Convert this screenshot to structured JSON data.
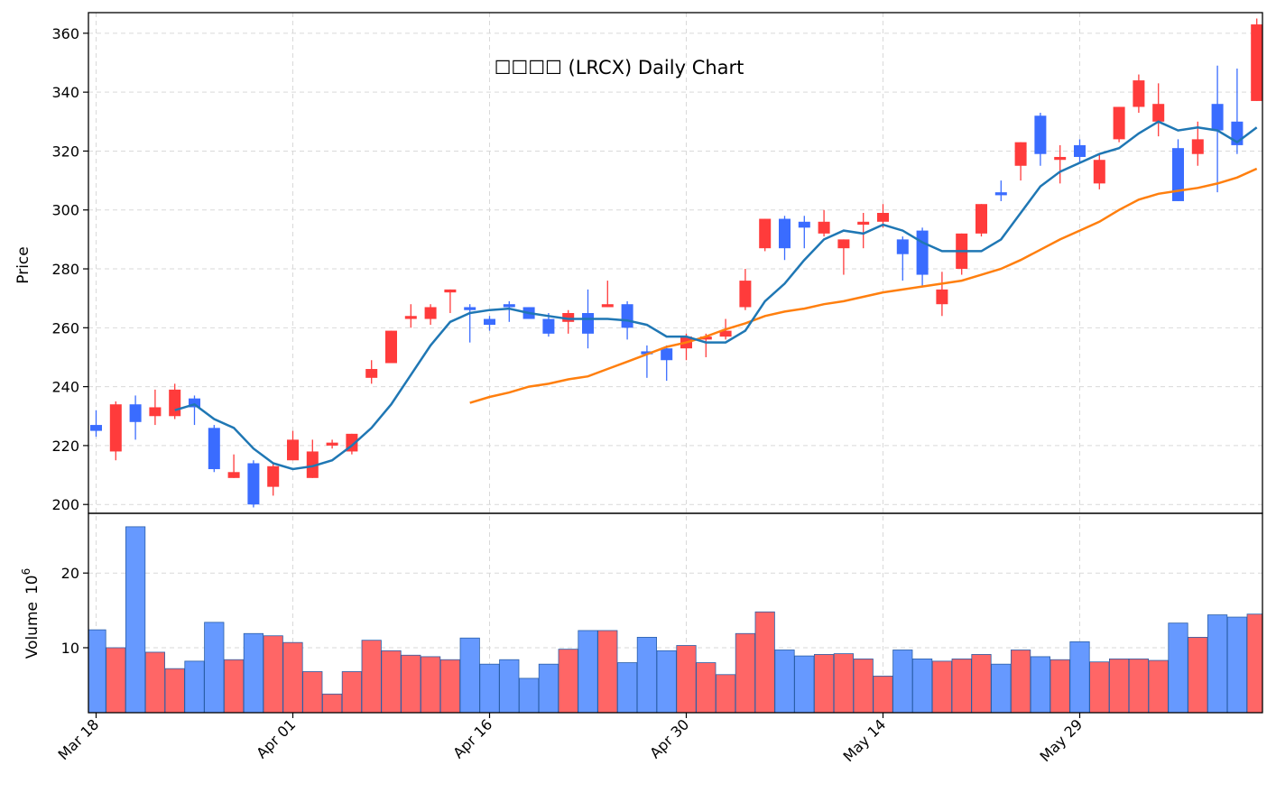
{
  "chart_data": {
    "type": "candlestick",
    "title": "泛林集团 (LRCX) Daily Chart",
    "title_display": "☐☐☐☐ (LRCX) Daily Chart",
    "ylabel_price": "Price",
    "ylabel_volume": "Volume",
    "volume_multiplier_label": "10",
    "volume_multiplier_exp": "6",
    "price_ticks": [
      "200",
      "220",
      "240",
      "260",
      "280",
      "300",
      "320",
      "340",
      "360"
    ],
    "volume_ticks": [
      "10",
      "20"
    ],
    "x_tick_labels": [
      "Mar 18",
      "Apr 01",
      "Apr 16",
      "Apr 30",
      "May 14",
      "May 29"
    ],
    "price_ylim": [
      197,
      367
    ],
    "volume_ylim": [
      1.3,
      28
    ],
    "grid": true,
    "colors": {
      "up": "#ff3b3b",
      "down": "#3a6cff",
      "up_volume": "#ff6666",
      "down_volume": "#6699ff",
      "ma_short": "#1f77b4",
      "ma_long": "#ff7f0e",
      "axis": "#000000",
      "grid": "#d9d9d9"
    },
    "candles": [
      {
        "o": 225,
        "h": 232,
        "l": 223,
        "c": 227,
        "dir": "down"
      },
      {
        "o": 218,
        "h": 235,
        "l": 215,
        "c": 234,
        "dir": "up"
      },
      {
        "o": 234,
        "h": 237,
        "l": 222,
        "c": 228,
        "dir": "down"
      },
      {
        "o": 230,
        "h": 239,
        "l": 227,
        "c": 233,
        "dir": "up"
      },
      {
        "o": 230,
        "h": 241,
        "l": 229,
        "c": 239,
        "dir": "up"
      },
      {
        "o": 236,
        "h": 237,
        "l": 227,
        "c": 233,
        "dir": "down"
      },
      {
        "o": 226,
        "h": 227,
        "l": 211,
        "c": 212,
        "dir": "down"
      },
      {
        "o": 209,
        "h": 217,
        "l": 209,
        "c": 211,
        "dir": "up"
      },
      {
        "o": 214,
        "h": 215,
        "l": 199,
        "c": 200,
        "dir": "down"
      },
      {
        "o": 206,
        "h": 214,
        "l": 203,
        "c": 213,
        "dir": "up"
      },
      {
        "o": 215,
        "h": 225,
        "l": 215,
        "c": 222,
        "dir": "up"
      },
      {
        "o": 209,
        "h": 222,
        "l": 209,
        "c": 218,
        "dir": "up"
      },
      {
        "o": 220,
        "h": 222,
        "l": 219,
        "c": 221,
        "dir": "up"
      },
      {
        "o": 218,
        "h": 224,
        "l": 217,
        "c": 224,
        "dir": "up"
      },
      {
        "o": 243,
        "h": 249,
        "l": 241,
        "c": 246,
        "dir": "up"
      },
      {
        "o": 248,
        "h": 259,
        "l": 248,
        "c": 259,
        "dir": "up"
      },
      {
        "o": 263,
        "h": 268,
        "l": 260,
        "c": 264,
        "dir": "up"
      },
      {
        "o": 263,
        "h": 268,
        "l": 261,
        "c": 267,
        "dir": "up"
      },
      {
        "o": 272,
        "h": 273,
        "l": 265,
        "c": 273,
        "dir": "up"
      },
      {
        "o": 267,
        "h": 268,
        "l": 255,
        "c": 266,
        "dir": "down"
      },
      {
        "o": 263,
        "h": 264,
        "l": 259,
        "c": 261,
        "dir": "down"
      },
      {
        "o": 268,
        "h": 269,
        "l": 262,
        "c": 267,
        "dir": "down"
      },
      {
        "o": 267,
        "h": 267,
        "l": 263,
        "c": 263,
        "dir": "down"
      },
      {
        "o": 263,
        "h": 265,
        "l": 257,
        "c": 258,
        "dir": "down"
      },
      {
        "o": 262,
        "h": 266,
        "l": 258,
        "c": 265,
        "dir": "up"
      },
      {
        "o": 265,
        "h": 273,
        "l": 253,
        "c": 258,
        "dir": "down"
      },
      {
        "o": 267,
        "h": 276,
        "l": 267,
        "c": 268,
        "dir": "up"
      },
      {
        "o": 268,
        "h": 269,
        "l": 256,
        "c": 260,
        "dir": "down"
      },
      {
        "o": 252,
        "h": 254,
        "l": 243,
        "c": 251,
        "dir": "down"
      },
      {
        "o": 253,
        "h": 254,
        "l": 242,
        "c": 249,
        "dir": "down"
      },
      {
        "o": 253,
        "h": 258,
        "l": 249,
        "c": 257,
        "dir": "up"
      },
      {
        "o": 256,
        "h": 258,
        "l": 250,
        "c": 257,
        "dir": "up"
      },
      {
        "o": 257,
        "h": 263,
        "l": 256,
        "c": 259,
        "dir": "up"
      },
      {
        "o": 267,
        "h": 280,
        "l": 266,
        "c": 276,
        "dir": "up"
      },
      {
        "o": 287,
        "h": 297,
        "l": 286,
        "c": 297,
        "dir": "up"
      },
      {
        "o": 297,
        "h": 298,
        "l": 283,
        "c": 287,
        "dir": "down"
      },
      {
        "o": 296,
        "h": 298,
        "l": 287,
        "c": 294,
        "dir": "down"
      },
      {
        "o": 292,
        "h": 300,
        "l": 291,
        "c": 296,
        "dir": "up"
      },
      {
        "o": 287,
        "h": 290,
        "l": 278,
        "c": 290,
        "dir": "up"
      },
      {
        "o": 295,
        "h": 299,
        "l": 287,
        "c": 296,
        "dir": "up"
      },
      {
        "o": 296,
        "h": 302,
        "l": 294,
        "c": 299,
        "dir": "up"
      },
      {
        "o": 290,
        "h": 291,
        "l": 276,
        "c": 285,
        "dir": "down"
      },
      {
        "o": 293,
        "h": 294,
        "l": 274,
        "c": 278,
        "dir": "down"
      },
      {
        "o": 268,
        "h": 279,
        "l": 264,
        "c": 273,
        "dir": "up"
      },
      {
        "o": 280,
        "h": 292,
        "l": 278,
        "c": 292,
        "dir": "up"
      },
      {
        "o": 292,
        "h": 302,
        "l": 291,
        "c": 302,
        "dir": "up"
      },
      {
        "o": 306,
        "h": 310,
        "l": 303,
        "c": 305,
        "dir": "down"
      },
      {
        "o": 315,
        "h": 323,
        "l": 310,
        "c": 323,
        "dir": "up"
      },
      {
        "o": 332,
        "h": 333,
        "l": 315,
        "c": 319,
        "dir": "down"
      },
      {
        "o": 317,
        "h": 322,
        "l": 309,
        "c": 318,
        "dir": "up"
      },
      {
        "o": 322,
        "h": 324,
        "l": 316,
        "c": 318,
        "dir": "down"
      },
      {
        "o": 309,
        "h": 319,
        "l": 307,
        "c": 317,
        "dir": "up"
      },
      {
        "o": 324,
        "h": 335,
        "l": 323,
        "c": 335,
        "dir": "up"
      },
      {
        "o": 335,
        "h": 346,
        "l": 333,
        "c": 344,
        "dir": "up"
      },
      {
        "o": 330,
        "h": 343,
        "l": 325,
        "c": 336,
        "dir": "up"
      },
      {
        "o": 321,
        "h": 324,
        "l": 303,
        "c": 303,
        "dir": "down"
      },
      {
        "o": 319,
        "h": 330,
        "l": 315,
        "c": 324,
        "dir": "up"
      },
      {
        "o": 336,
        "h": 349,
        "l": 306,
        "c": 327,
        "dir": "down"
      },
      {
        "o": 330,
        "h": 348,
        "l": 319,
        "c": 322,
        "dir": "down"
      },
      {
        "o": 337,
        "h": 365,
        "l": 337,
        "c": 363,
        "dir": "up"
      }
    ],
    "volume": [
      12.4,
      10.0,
      26.2,
      9.4,
      7.2,
      8.2,
      13.4,
      8.4,
      11.9,
      11.6,
      10.7,
      6.8,
      3.8,
      6.8,
      11.0,
      9.6,
      9.0,
      8.8,
      8.4,
      11.3,
      7.8,
      8.4,
      5.9,
      7.8,
      9.8,
      12.3,
      12.3,
      8.0,
      11.4,
      9.6,
      10.3,
      8.0,
      6.4,
      11.9,
      14.8,
      9.7,
      8.9,
      9.1,
      9.2,
      8.5,
      6.2,
      9.7,
      8.5,
      8.2,
      8.5,
      9.1,
      7.8,
      9.7,
      8.8,
      8.4,
      10.8,
      8.1,
      8.5,
      8.5,
      8.3,
      13.3,
      11.4,
      14.4,
      14.1,
      14.5
    ],
    "ma_short": [
      null,
      null,
      null,
      null,
      232,
      234,
      229,
      226,
      219,
      214,
      212,
      213,
      215,
      220,
      226,
      234,
      244,
      254,
      262,
      265,
      266,
      266.5,
      265,
      264,
      263,
      263,
      263,
      262.5,
      261,
      257,
      257,
      255,
      255,
      259,
      269,
      275,
      283,
      290,
      293,
      292,
      295,
      293,
      289,
      286,
      286,
      286,
      290,
      299,
      308,
      313,
      316,
      319,
      321,
      326,
      330,
      327,
      328,
      327,
      323,
      328
    ],
    "ma_long": [
      null,
      null,
      null,
      null,
      null,
      null,
      null,
      null,
      null,
      null,
      null,
      null,
      null,
      null,
      null,
      null,
      null,
      null,
      null,
      234.5,
      236.5,
      238,
      240,
      241,
      242.5,
      243.5,
      246,
      248.5,
      251,
      253.5,
      255,
      257,
      259.5,
      261.5,
      264,
      265.5,
      266.5,
      268,
      269,
      270.5,
      272,
      273,
      274,
      275,
      276,
      278,
      280,
      283,
      286.5,
      290,
      293,
      296,
      300,
      303.5,
      305.5,
      306.5,
      307.5,
      309,
      311,
      314
    ]
  }
}
